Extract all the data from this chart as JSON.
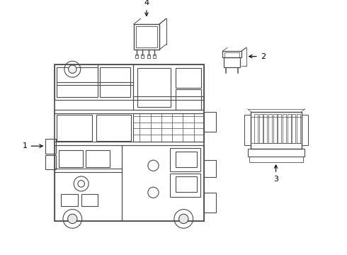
{
  "background_color": "#ffffff",
  "line_color": "#4a4a4a",
  "lw": 0.8,
  "fig_w": 4.9,
  "fig_h": 3.6,
  "dpi": 100,
  "label_fontsize": 8,
  "arrow_color": "#000000"
}
